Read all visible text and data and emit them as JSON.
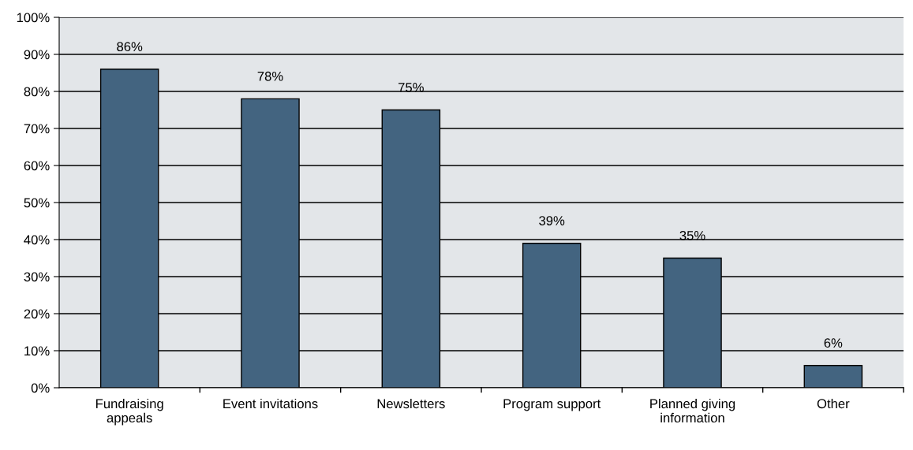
{
  "chart_data": {
    "type": "bar",
    "categories": [
      "Fundraising\nappeals",
      "Event invitations",
      "Newsletters",
      "Program support",
      "Planned giving\ninformation",
      "Other"
    ],
    "values": [
      86,
      78,
      75,
      39,
      35,
      6
    ],
    "color": "#436480",
    "ylim": [
      0,
      100
    ],
    "yticks": [
      {
        "value": 0,
        "label": "0%"
      },
      {
        "value": 10,
        "label": "10%"
      },
      {
        "value": 20,
        "label": "20%"
      },
      {
        "value": 30,
        "label": "30%"
      },
      {
        "value": 40,
        "label": "40%"
      },
      {
        "value": 50,
        "label": "50%"
      },
      {
        "value": 60,
        "label": "60%"
      },
      {
        "value": 70,
        "label": "70%"
      },
      {
        "value": 80,
        "label": "80%"
      },
      {
        "value": 90,
        "label": "90%"
      },
      {
        "value": 100,
        "label": "100%"
      }
    ],
    "value_labels": [
      "86%",
      "78%",
      "75%",
      "39%",
      "35%",
      "6%"
    ],
    "grid": "y",
    "legend": false
  }
}
